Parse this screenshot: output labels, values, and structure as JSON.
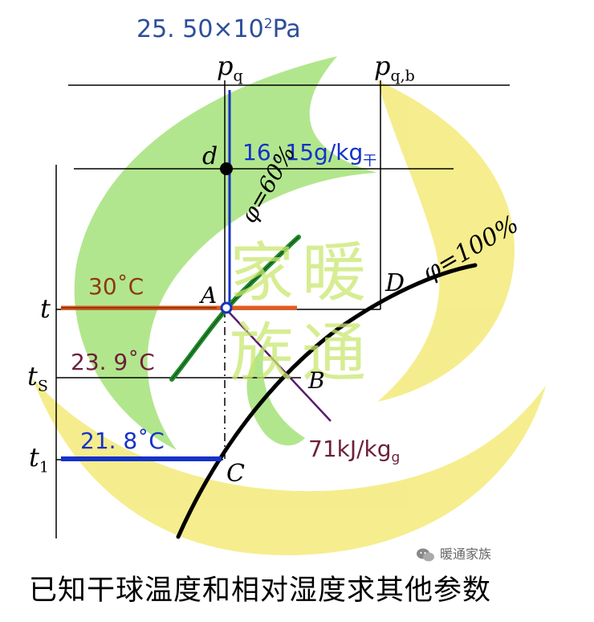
{
  "top_value": {
    "main": "25. 50×10",
    "sup": "2",
    "unit": "Pa"
  },
  "axis_labels": {
    "pq": "p",
    "pq_sub": "q",
    "pqb": "p",
    "pqb_sub": "q,b"
  },
  "point_labels": {
    "d": "d",
    "A": "A",
    "B": "B",
    "C": "C",
    "D": "D"
  },
  "moisture_value": {
    "main": "16. 15g/kg",
    "sub": "干"
  },
  "curves": {
    "phi60": "φ=60%",
    "phi100": "φ=100%"
  },
  "temperatures": {
    "t": {
      "symbol": "t",
      "sub": "",
      "value": "30˚C"
    },
    "ts": {
      "symbol": "t",
      "sub": "S",
      "value": "23. 9˚C"
    },
    "t1": {
      "symbol": "t",
      "sub": "1",
      "value": "21. 8˚C"
    }
  },
  "enthalpy": {
    "main": "71kJ/kg",
    "sub": "g"
  },
  "watermark": {
    "characters": [
      "家",
      "暖",
      "族",
      "通"
    ],
    "account": "暖通家族"
  },
  "caption": "已知干球温度和相对湿度求其他参数",
  "colors": {
    "blue": "#1432c8",
    "darkblue": "#2d4e9a",
    "brown": "#8b3a12",
    "maroon": "#6e1f3a",
    "orange": "#e85a1a",
    "green": "#1f8a2a",
    "purple": "#5a1a6e",
    "logo_green": "#9adf6e",
    "logo_yellow": "#f3e66a"
  }
}
